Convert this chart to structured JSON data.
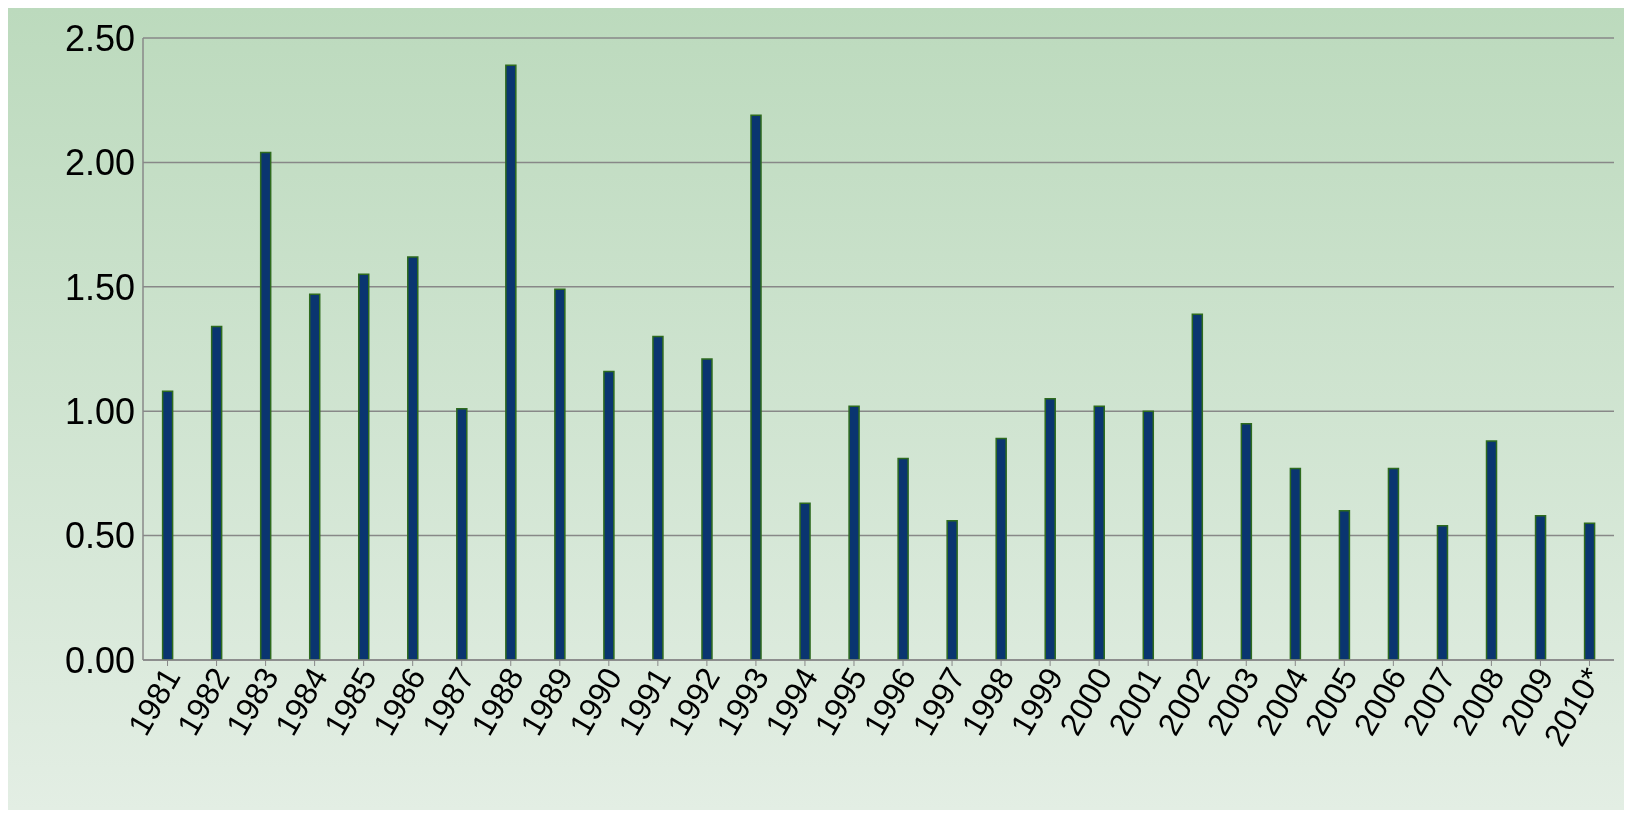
{
  "chart_data": {
    "type": "bar",
    "categories": [
      "1981",
      "1982",
      "1983",
      "1984",
      "1985",
      "1986",
      "1987",
      "1988",
      "1989",
      "1990",
      "1991",
      "1992",
      "1993",
      "1994",
      "1995",
      "1996",
      "1997",
      "1998",
      "1999",
      "2000",
      "2001",
      "2002",
      "2003",
      "2004",
      "2005",
      "2006",
      "2007",
      "2008",
      "2009",
      "2010*"
    ],
    "values": [
      1.08,
      1.34,
      2.04,
      1.47,
      1.55,
      1.62,
      1.01,
      2.39,
      1.49,
      1.16,
      1.3,
      1.21,
      2.19,
      0.63,
      1.02,
      0.81,
      0.56,
      0.89,
      1.05,
      1.02,
      1.0,
      1.39,
      0.95,
      0.77,
      0.6,
      0.77,
      0.54,
      0.88,
      0.58,
      0.55
    ],
    "color": "#0a3570",
    "ylim": [
      0,
      2.5
    ],
    "yticks": [
      {
        "value": 0,
        "label": "0.00"
      },
      {
        "value": 0.5,
        "label": "0.50"
      },
      {
        "value": 1,
        "label": "1.00"
      },
      {
        "value": 1.5,
        "label": "1.50"
      },
      {
        "value": 2,
        "label": "2.00"
      },
      {
        "value": 2.5,
        "label": "2.50"
      }
    ],
    "grid": "y"
  }
}
